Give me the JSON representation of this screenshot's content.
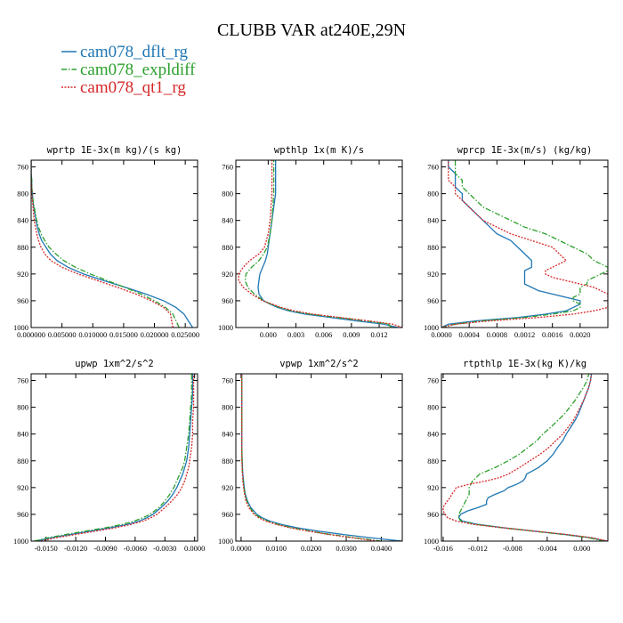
{
  "figure_title": "CLUBB VAR at240E,29N",
  "legend": [
    {
      "label": "cam078_dflt_rg",
      "color": "#1f77b4",
      "dash": "solid"
    },
    {
      "label": "cam078_expldiff",
      "color": "#2ca02c",
      "dash": "dashdot"
    },
    {
      "label": "cam078_qt1_rg",
      "color": "#d62728",
      "dash": "dotted"
    }
  ],
  "chart_data": [
    {
      "type": "line",
      "title": "wprtp 1E-3x(m kg)/(s kg)",
      "xlim": [
        0,
        0.027
      ],
      "ylim": [
        1000,
        750
      ],
      "xticks": [
        0,
        0.005,
        0.01,
        0.015,
        0.02,
        0.025
      ],
      "xticklabels": [
        "0.000000",
        "0.005000",
        "0.010000",
        "0.015000",
        "0.020000",
        "0.025000"
      ],
      "yticks": [
        760,
        800,
        840,
        880,
        920,
        960,
        1000
      ],
      "y": [
        1000,
        990,
        980,
        970,
        960,
        950,
        940,
        930,
        920,
        910,
        900,
        890,
        880,
        870,
        860,
        850,
        840,
        830,
        820,
        810,
        800,
        790,
        780,
        770,
        760,
        750
      ],
      "series": [
        {
          "name": "cam078_dflt_rg",
          "values": [
            0.0262,
            0.0255,
            0.0248,
            0.0235,
            0.0215,
            0.0186,
            0.0153,
            0.0118,
            0.0085,
            0.006,
            0.0042,
            0.0031,
            0.0024,
            0.0017,
            0.0013,
            0.001,
            0.0008,
            0.0006,
            0.0004,
            0.0003,
            0.0002,
            0.0001,
            0.0001,
            0.0,
            0.0,
            0.0
          ]
        },
        {
          "name": "cam078_expldiff",
          "values": [
            0.024,
            0.0235,
            0.023,
            0.0218,
            0.02,
            0.0178,
            0.0152,
            0.0124,
            0.0096,
            0.0072,
            0.0053,
            0.004,
            0.0029,
            0.0022,
            0.0016,
            0.0012,
            0.0009,
            0.0007,
            0.0005,
            0.0003,
            0.0002,
            0.0001,
            0.0001,
            0.0,
            0.0,
            0.0
          ]
        },
        {
          "name": "cam078_qt1_rg",
          "values": [
            0.023,
            0.0228,
            0.0226,
            0.0215,
            0.0195,
            0.017,
            0.014,
            0.0108,
            0.0076,
            0.005,
            0.0032,
            0.0022,
            0.0016,
            0.0012,
            0.0009,
            0.0007,
            0.0005,
            0.0004,
            0.0003,
            0.0002,
            0.0001,
            0.0001,
            0.0,
            0.0,
            0.0,
            0.0
          ]
        }
      ]
    },
    {
      "type": "line",
      "title": "wpthlp 1x(m K)/s",
      "xlim": [
        -0.0035,
        0.0145
      ],
      "ylim": [
        1000,
        750
      ],
      "xticks": [
        0,
        0.003,
        0.006,
        0.009,
        0.012
      ],
      "xticklabels": [
        "0.000",
        "0.003",
        "0.006",
        "0.009",
        "0.012"
      ],
      "yticks": [
        760,
        800,
        840,
        880,
        920,
        960,
        1000
      ],
      "y": [
        1000,
        995,
        990,
        985,
        980,
        975,
        970,
        965,
        960,
        950,
        940,
        930,
        920,
        910,
        900,
        890,
        880,
        860,
        840,
        820,
        800,
        780,
        760,
        750
      ],
      "series": [
        {
          "name": "cam078_dflt_rg",
          "values": [
            0.014,
            0.0125,
            0.0095,
            0.0068,
            0.004,
            0.0022,
            0.001,
            0.0002,
            -0.0005,
            -0.001,
            -0.0011,
            -0.001,
            -0.0009,
            -0.0006,
            -0.0003,
            -0.0001,
            0.0,
            0.0002,
            0.0004,
            0.0006,
            0.0008,
            0.0008,
            0.0008,
            0.0008
          ]
        },
        {
          "name": "cam078_expldiff",
          "values": [
            0.0133,
            0.013,
            0.0105,
            0.0075,
            0.0045,
            0.0025,
            0.0012,
            0.0003,
            -0.0005,
            -0.0015,
            -0.0022,
            -0.0025,
            -0.0024,
            -0.0018,
            -0.001,
            -0.0005,
            -0.0001,
            0.0002,
            0.0004,
            0.0005,
            0.0006,
            0.0006,
            0.0006,
            0.0006
          ]
        },
        {
          "name": "cam078_qt1_rg",
          "values": [
            0.0145,
            0.0135,
            0.0108,
            0.0078,
            0.0048,
            0.0028,
            0.0014,
            0.0004,
            -0.0006,
            -0.0018,
            -0.0027,
            -0.0032,
            -0.0032,
            -0.0027,
            -0.002,
            -0.001,
            -0.0004,
            0.0,
            0.0002,
            0.0003,
            0.0004,
            0.0004,
            0.0004,
            0.0004
          ]
        }
      ]
    },
    {
      "type": "line",
      "title": "wprcp 1E-3x(m/s) (kg/kg)",
      "xlim": [
        0,
        0.0024
      ],
      "ylim": [
        1000,
        750
      ],
      "xticks": [
        0,
        0.0004,
        0.0008,
        0.0012,
        0.0016,
        0.002
      ],
      "xticklabels": [
        "0.0000",
        "0.0004",
        "0.0008",
        "0.0012",
        "0.0016",
        "0.0020"
      ],
      "yticks": [
        760,
        800,
        840,
        880,
        920,
        960,
        1000
      ],
      "y": [
        1000,
        995,
        990,
        985,
        980,
        975,
        970,
        965,
        960,
        955,
        950,
        945,
        940,
        935,
        930,
        925,
        920,
        915,
        910,
        905,
        900,
        890,
        880,
        870,
        860,
        850,
        840,
        830,
        820,
        810,
        800,
        790,
        780,
        770,
        760,
        750
      ],
      "series": [
        {
          "name": "cam078_dflt_rg",
          "values": [
            0.0,
            0.0001,
            0.0005,
            0.0011,
            0.0015,
            0.0018,
            0.0019,
            0.002,
            0.002,
            0.0018,
            0.0016,
            0.0014,
            0.0013,
            0.0012,
            0.0012,
            0.0012,
            0.0012,
            0.0012,
            0.0013,
            0.0013,
            0.0013,
            0.0012,
            0.0011,
            0.001,
            0.0008,
            0.0007,
            0.0006,
            0.0005,
            0.0004,
            0.0003,
            0.0003,
            0.0002,
            0.0002,
            0.0002,
            0.0001,
            0.0001
          ]
        },
        {
          "name": "cam078_expldiff",
          "values": [
            0.0,
            0.0002,
            0.0006,
            0.0012,
            0.0016,
            0.0019,
            0.002,
            0.002,
            0.0019,
            0.0019,
            0.002,
            0.002,
            0.002,
            0.0021,
            0.0021,
            0.0022,
            0.0023,
            0.0024,
            0.0024,
            0.0023,
            0.0022,
            0.0021,
            0.0019,
            0.0017,
            0.0015,
            0.0012,
            0.001,
            0.0008,
            0.0006,
            0.0005,
            0.0004,
            0.0003,
            0.0003,
            0.0002,
            0.0002,
            0.0002
          ]
        },
        {
          "name": "cam078_qt1_rg",
          "values": [
            0.0,
            0.0002,
            0.0007,
            0.0014,
            0.0019,
            0.0022,
            0.0024,
            0.0024,
            0.0024,
            0.0024,
            0.0024,
            0.0023,
            0.0022,
            0.002,
            0.0018,
            0.0016,
            0.0015,
            0.0015,
            0.0016,
            0.0017,
            0.0018,
            0.0017,
            0.0016,
            0.0013,
            0.001,
            0.0008,
            0.0006,
            0.0005,
            0.0004,
            0.0003,
            0.0002,
            0.0002,
            0.0001,
            0.0001,
            0.0001,
            0.0001
          ]
        }
      ]
    },
    {
      "type": "line",
      "title": "upwp 1xm^2/s^2",
      "xlim": [
        -0.0165,
        0.0003
      ],
      "ylim": [
        1000,
        750
      ],
      "xticks": [
        -0.015,
        -0.012,
        -0.009,
        -0.006,
        -0.003,
        0.0
      ],
      "xticklabels": [
        "-0.0150",
        "-0.0120",
        "-0.0090",
        "-0.0060",
        "-0.0030",
        "0.0000"
      ],
      "yticks": [
        760,
        800,
        840,
        880,
        920,
        960,
        1000
      ],
      "y": [
        1000,
        995,
        990,
        985,
        980,
        975,
        970,
        965,
        960,
        950,
        940,
        930,
        920,
        910,
        900,
        890,
        880,
        860,
        840,
        820,
        800,
        780,
        760,
        750
      ],
      "series": [
        {
          "name": "cam078_dflt_rg",
          "values": [
            -0.016,
            -0.0145,
            -0.0125,
            -0.0105,
            -0.0085,
            -0.0068,
            -0.0056,
            -0.0048,
            -0.0042,
            -0.0034,
            -0.0027,
            -0.0022,
            -0.0018,
            -0.0015,
            -0.0012,
            -0.001,
            -0.0008,
            -0.0006,
            -0.0005,
            -0.0004,
            -0.0003,
            -0.0002,
            -0.0002,
            -0.0002
          ]
        },
        {
          "name": "cam078_expldiff",
          "values": [
            -0.0162,
            -0.0148,
            -0.013,
            -0.011,
            -0.009,
            -0.0073,
            -0.0061,
            -0.0052,
            -0.0045,
            -0.0036,
            -0.003,
            -0.0025,
            -0.0021,
            -0.0018,
            -0.0015,
            -0.0012,
            -0.001,
            -0.0008,
            -0.0006,
            -0.0005,
            -0.0004,
            -0.0003,
            -0.0003,
            -0.0003
          ]
        },
        {
          "name": "cam078_qt1_rg",
          "values": [
            -0.0155,
            -0.014,
            -0.012,
            -0.01,
            -0.008,
            -0.0064,
            -0.0052,
            -0.0044,
            -0.0038,
            -0.003,
            -0.0023,
            -0.0017,
            -0.0013,
            -0.001,
            -0.0008,
            -0.0006,
            -0.0005,
            -0.0003,
            -0.0002,
            -0.0002,
            -0.0001,
            -0.0001,
            -0.0001,
            -0.0001
          ]
        }
      ]
    },
    {
      "type": "line",
      "title": "vpwp 1xm^2/s^2",
      "xlim": [
        -0.0015,
        0.046
      ],
      "ylim": [
        1000,
        750
      ],
      "xticks": [
        0,
        0.01,
        0.02,
        0.03,
        0.04
      ],
      "xticklabels": [
        "0.0000",
        "0.0100",
        "0.0200",
        "0.0300",
        "0.0400"
      ],
      "yticks": [
        760,
        800,
        840,
        880,
        920,
        960,
        1000
      ],
      "y": [
        1000,
        995,
        990,
        985,
        980,
        975,
        970,
        965,
        960,
        950,
        940,
        930,
        920,
        910,
        900,
        890,
        880,
        860,
        840,
        820,
        800,
        780,
        760,
        750
      ],
      "series": [
        {
          "name": "cam078_dflt_rg",
          "values": [
            0.046,
            0.037,
            0.029,
            0.022,
            0.016,
            0.0115,
            0.0082,
            0.006,
            0.0045,
            0.0028,
            0.0018,
            0.0012,
            0.0009,
            0.0007,
            0.0005,
            0.0004,
            0.0003,
            0.0002,
            0.0002,
            0.0002,
            0.0002,
            0.0002,
            0.0002,
            0.0002
          ]
        },
        {
          "name": "cam078_expldiff",
          "values": [
            0.04,
            0.0325,
            0.0255,
            0.0195,
            0.0145,
            0.0105,
            0.0075,
            0.0055,
            0.004,
            0.0025,
            0.0016,
            0.0011,
            0.0008,
            0.0006,
            0.0004,
            0.0003,
            0.0003,
            0.0002,
            0.0002,
            0.0002,
            0.0002,
            0.0002,
            0.0002,
            0.0002
          ]
        },
        {
          "name": "cam078_qt1_rg",
          "values": [
            0.039,
            0.0318,
            0.025,
            0.019,
            0.014,
            0.01,
            0.007,
            0.005,
            0.0037,
            0.0022,
            0.0014,
            0.001,
            0.0007,
            0.0005,
            0.0004,
            0.0003,
            0.0002,
            0.0002,
            0.0002,
            0.0002,
            0.0002,
            0.0002,
            0.0002,
            0.0002
          ]
        }
      ]
    },
    {
      "type": "line",
      "title": "rtpthlp 1E-3x(kg K)/kg",
      "xlim": [
        -0.0162,
        0.003
      ],
      "ylim": [
        1000,
        750
      ],
      "xticks": [
        -0.016,
        -0.012,
        -0.008,
        -0.004,
        0.0
      ],
      "xticklabels": [
        "-0.016",
        "-0.012",
        "-0.008",
        "-0.004",
        "0.000"
      ],
      "yticks": [
        760,
        800,
        840,
        880,
        920,
        960,
        1000
      ],
      "y": [
        1000,
        995,
        990,
        985,
        980,
        975,
        970,
        965,
        960,
        955,
        950,
        945,
        940,
        935,
        930,
        925,
        920,
        915,
        910,
        905,
        900,
        890,
        880,
        870,
        860,
        850,
        840,
        830,
        820,
        810,
        800,
        790,
        780,
        770,
        760,
        750
      ],
      "series": [
        {
          "name": "cam078_dflt_rg",
          "values": [
            0.0028,
            0.001,
            -0.002,
            -0.0055,
            -0.009,
            -0.012,
            -0.0138,
            -0.0142,
            -0.014,
            -0.0132,
            -0.012,
            -0.011,
            -0.011,
            -0.0108,
            -0.01,
            -0.009,
            -0.0085,
            -0.0075,
            -0.0068,
            -0.0065,
            -0.0064,
            -0.005,
            -0.004,
            -0.0033,
            -0.0028,
            -0.0022,
            -0.0018,
            -0.0013,
            -0.0008,
            -0.0004,
            -0.0001,
            0.0002,
            0.0005,
            0.0008,
            0.001,
            0.0011
          ]
        },
        {
          "name": "cam078_expldiff",
          "values": [
            0.0026,
            0.0008,
            -0.0022,
            -0.0057,
            -0.0092,
            -0.0122,
            -0.014,
            -0.0142,
            -0.0142,
            -0.014,
            -0.0138,
            -0.0136,
            -0.0134,
            -0.0132,
            -0.013,
            -0.013,
            -0.013,
            -0.0128,
            -0.0126,
            -0.0122,
            -0.0118,
            -0.01,
            -0.0085,
            -0.0072,
            -0.0062,
            -0.0052,
            -0.0045,
            -0.0036,
            -0.0028,
            -0.002,
            -0.0014,
            -0.0008,
            -0.0003,
            0.0002,
            0.0006,
            0.0008
          ]
        },
        {
          "name": "cam078_qt1_rg",
          "values": [
            0.003,
            0.0012,
            -0.0018,
            -0.0055,
            -0.0092,
            -0.0125,
            -0.0145,
            -0.0155,
            -0.0158,
            -0.016,
            -0.016,
            -0.0158,
            -0.0155,
            -0.0152,
            -0.015,
            -0.0147,
            -0.0145,
            -0.013,
            -0.011,
            -0.0095,
            -0.0085,
            -0.0072,
            -0.006,
            -0.0048,
            -0.0038,
            -0.003,
            -0.0022,
            -0.0016,
            -0.001,
            -0.0006,
            -0.0002,
            0.0002,
            0.0005,
            0.0008,
            0.001,
            0.0011
          ]
        }
      ]
    }
  ]
}
